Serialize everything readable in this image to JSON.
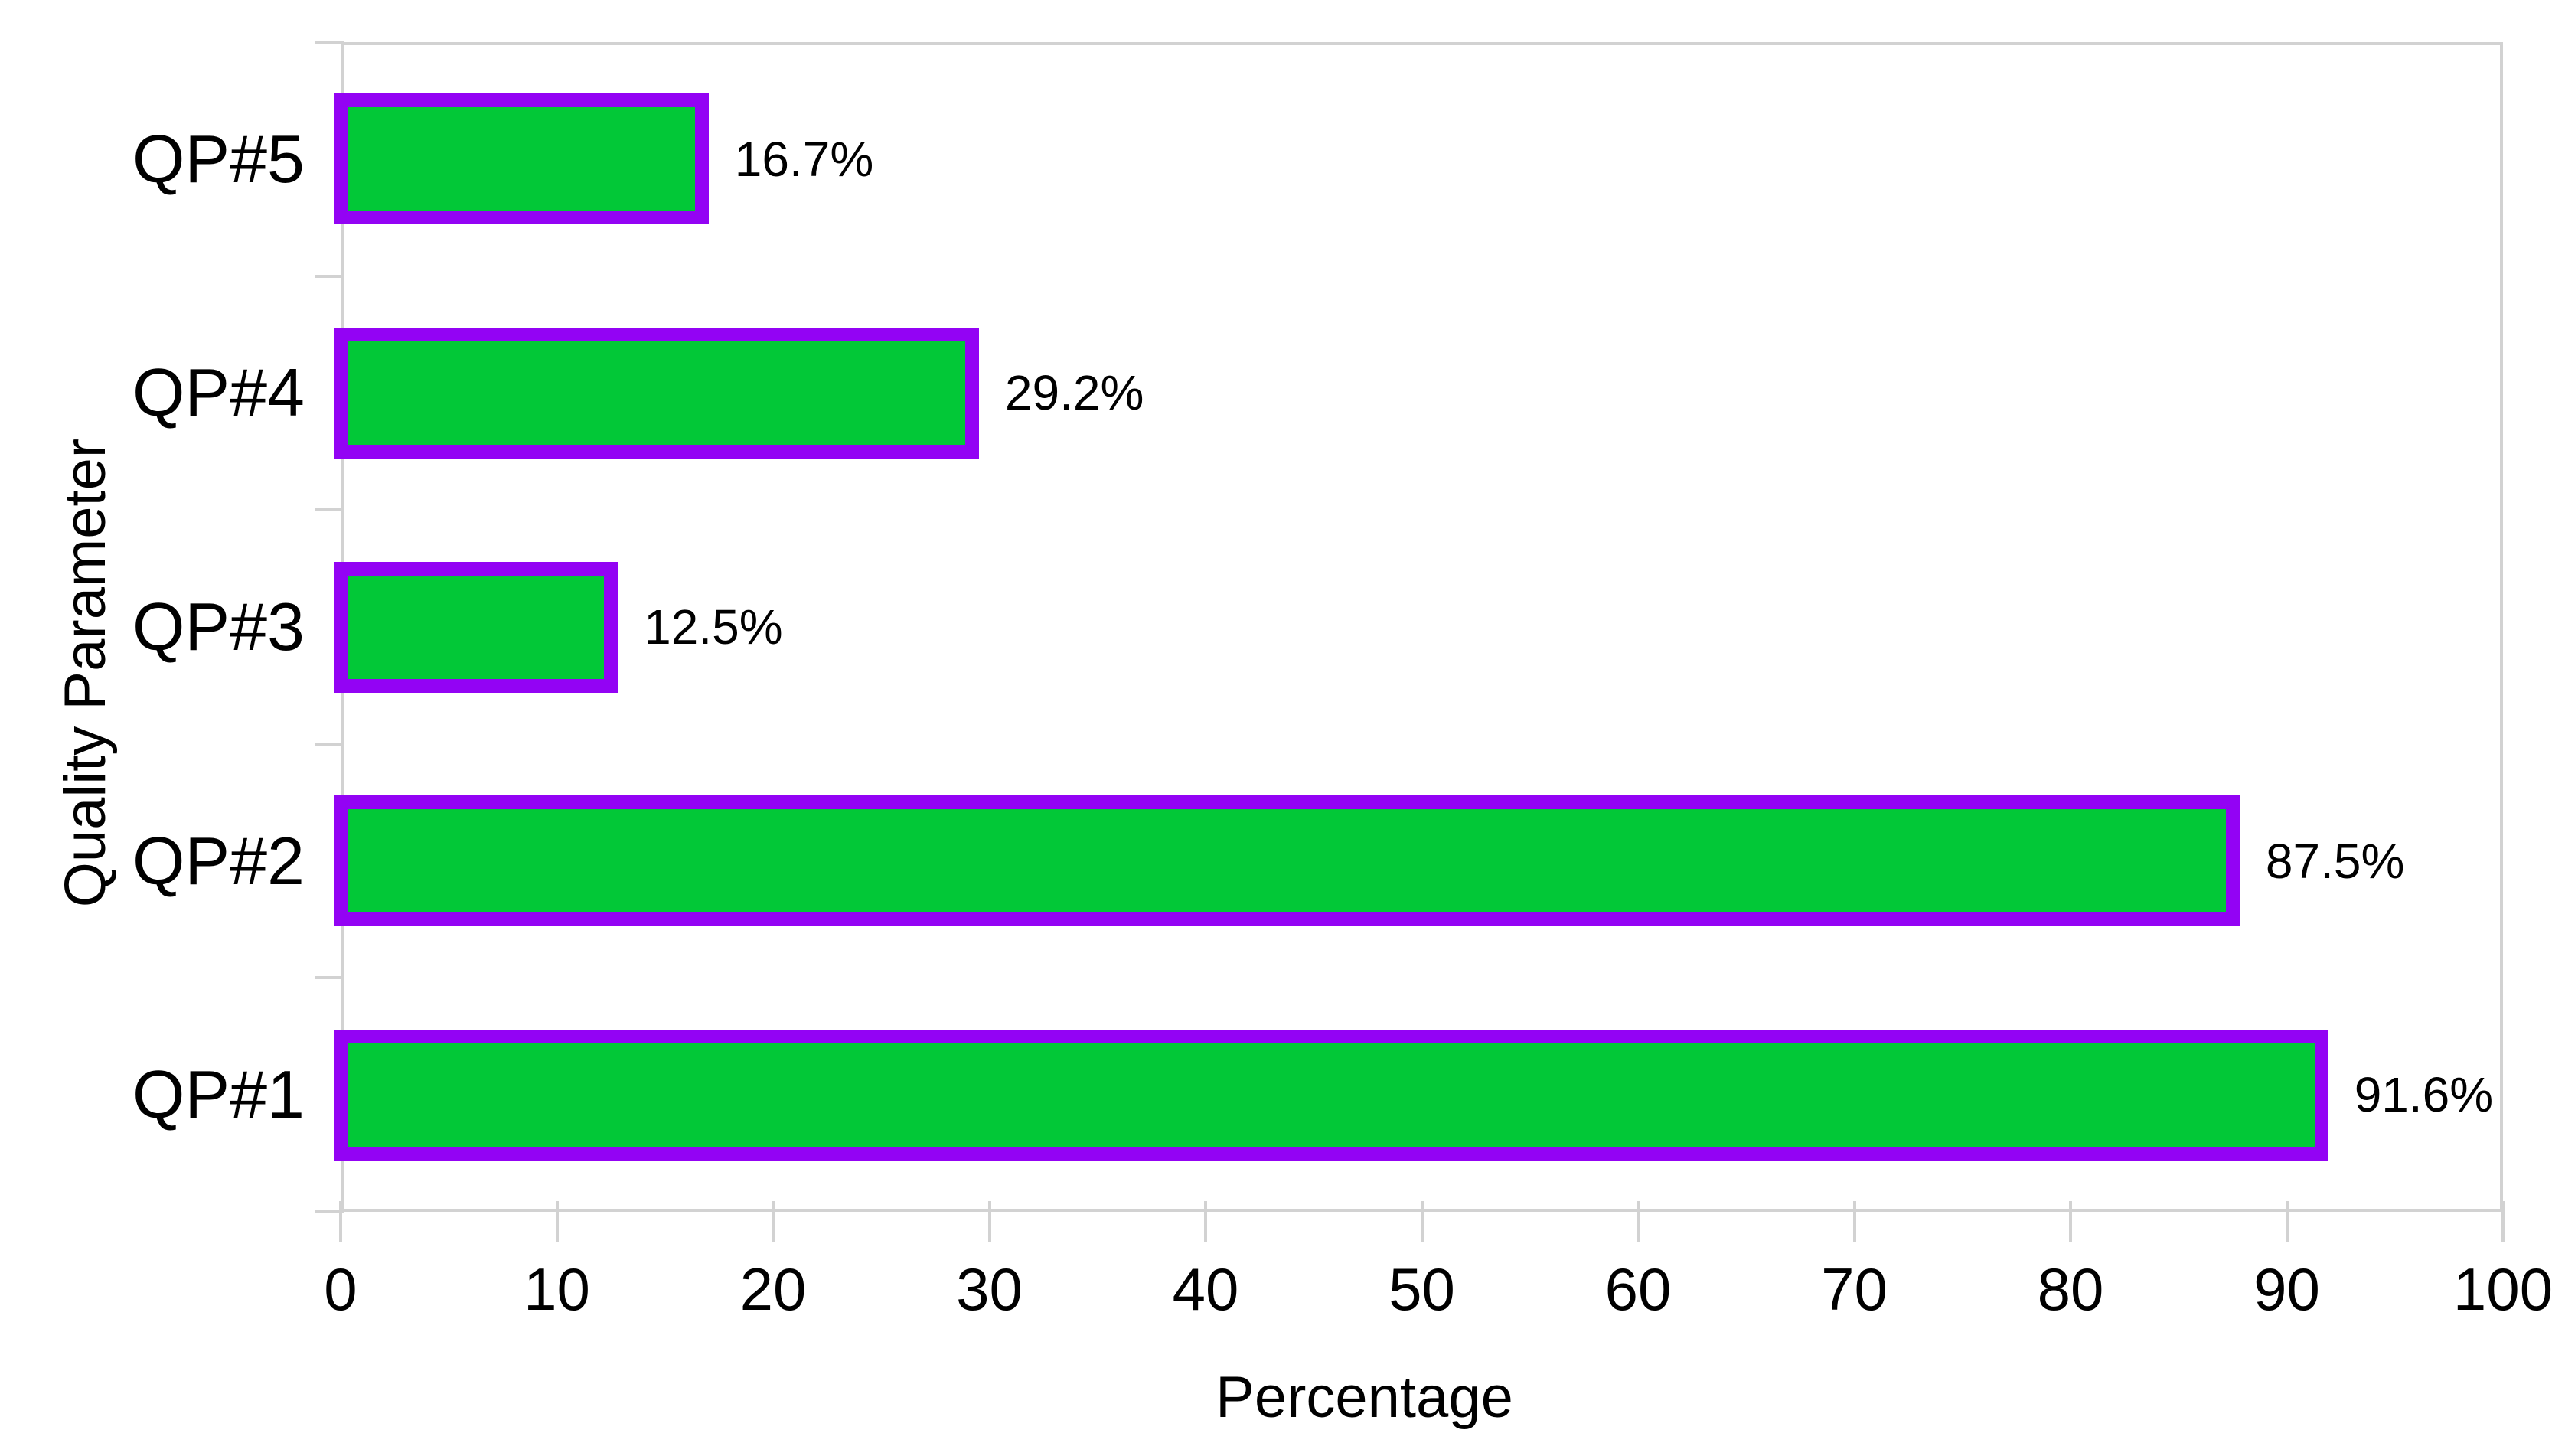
{
  "chart_data": {
    "type": "bar",
    "orientation": "horizontal",
    "title": "",
    "xlabel": "Percentage",
    "ylabel": "Quality Parameter",
    "xlim": [
      0,
      100
    ],
    "xticks": [
      0,
      10,
      20,
      30,
      40,
      50,
      60,
      70,
      80,
      90,
      100
    ],
    "grid": false,
    "legend": false,
    "categories_top_to_bottom": [
      "QP#5",
      "QP#4",
      "QP#3",
      "QP#2",
      "QP#1"
    ],
    "values_top_to_bottom": [
      16.7,
      29.2,
      12.5,
      87.5,
      91.6
    ],
    "value_labels_top_to_bottom": [
      "16.7%",
      "29.2%",
      "12.5%",
      "87.5%",
      "91.6%"
    ],
    "colors": {
      "bar_fill": "#02c837",
      "bar_border": "#9303f4",
      "axis": "#d2d2d2",
      "text": "#000000"
    }
  }
}
